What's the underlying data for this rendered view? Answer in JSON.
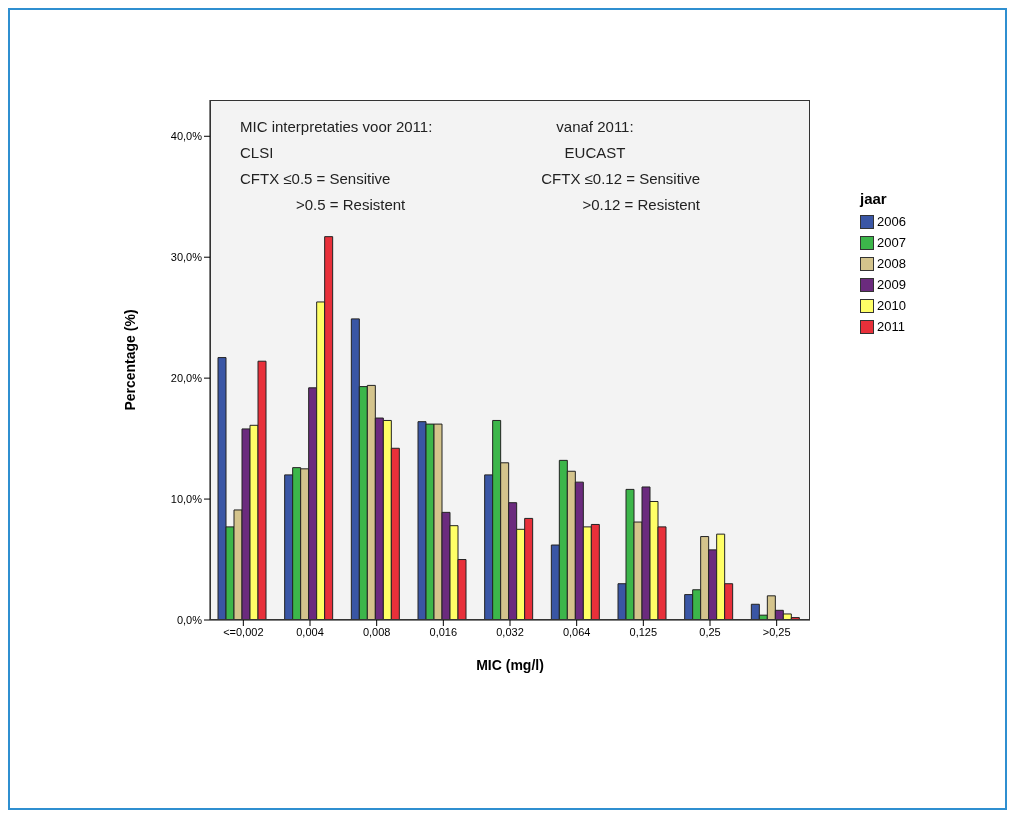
{
  "chart_data": {
    "type": "bar",
    "xlabel": "MIC (mg/l)",
    "ylabel": "Percentage (%)",
    "legend_title": "jaar",
    "legend": "right",
    "grid": false,
    "categories": [
      "<=0,002",
      "0,004",
      "0,008",
      "0,016",
      "0,032",
      "0,064",
      "0,125",
      "0,25",
      ">0,25"
    ],
    "ylim": [
      0,
      43
    ],
    "yticks": [
      {
        "value": 0,
        "label": "0,0%"
      },
      {
        "value": 10,
        "label": "10,0%"
      },
      {
        "value": 20,
        "label": "20,0%"
      },
      {
        "value": 30,
        "label": "30,0%"
      },
      {
        "value": 40,
        "label": "40,0%"
      }
    ],
    "annotations": [
      "MIC interpretaties voor 2011:",
      "CLSI",
      "CFTX ≤0.5 = Sensitive",
      ">0.5 = Resistent",
      "vanaf 2011:",
      "EUCAST",
      "CFTX ≤0.12 = Sensitive",
      ">0.12 = Resistent"
    ],
    "series": [
      {
        "name": "2006",
        "color": "#3a56a5",
        "values": [
          21.7,
          12.0,
          24.9,
          16.4,
          12.0,
          6.2,
          3.0,
          2.1,
          1.3
        ]
      },
      {
        "name": "2007",
        "color": "#3cb64a",
        "values": [
          7.7,
          12.6,
          19.3,
          16.2,
          16.5,
          13.2,
          10.8,
          2.5,
          0.4
        ]
      },
      {
        "name": "2008",
        "color": "#d4c48c",
        "values": [
          9.1,
          12.5,
          19.4,
          16.2,
          13.0,
          12.3,
          8.1,
          6.9,
          2.0
        ]
      },
      {
        "name": "2009",
        "color": "#6b2b7e",
        "values": [
          15.8,
          19.2,
          16.7,
          8.9,
          9.7,
          11.4,
          11.0,
          5.8,
          0.8
        ]
      },
      {
        "name": "2010",
        "color": "#ffff66",
        "values": [
          16.1,
          26.3,
          16.5,
          7.8,
          7.5,
          7.7,
          9.8,
          7.1,
          0.5
        ]
      },
      {
        "name": "2011",
        "color": "#e8303a",
        "values": [
          21.4,
          31.7,
          14.2,
          5.0,
          8.4,
          7.9,
          7.7,
          3.0,
          0.2
        ]
      }
    ]
  }
}
